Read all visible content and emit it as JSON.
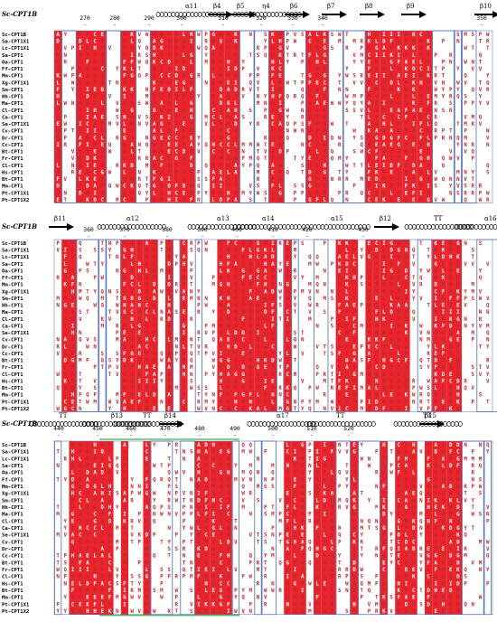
{
  "reference_label": "Sc-CPT1B",
  "species": [
    "Sc-CPT1B",
    "Sa-CPT1X1",
    "Lc-CPT1X1",
    "Sa-CPT1",
    "Oa-CPT1",
    "Ff-CPT1",
    "Mm-CPT1",
    "Xg-CPT1X1",
    "Sm-CPT1",
    "Hh-CPT1",
    "Ma-CPT1",
    "Cl-CPT1",
    "Ca-CPT1",
    "Se-CPT1X1",
    "Cv-CPT1",
    "Dr-CPT1",
    "Cc-CPT1",
    "Bt-CPT1",
    "Fr-CPT1",
    "Cl-CPT1",
    "Hs-CPT1",
    "Bt-CPT1",
    "Mm-CPT1",
    "Pt-CPT1X1",
    "Pt-CPT1X2"
  ],
  "blocks": [
    {
      "numbers": [
        {
          "label": "270"
        },
        {
          "label": "280"
        },
        {
          "label": "290"
        },
        {
          "label": "300"
        },
        {
          "label": "310"
        },
        {
          "label": "320"
        },
        {
          "label": "330"
        },
        {
          "label": "340"
        },
        {
          "label": "350"
        }
      ],
      "ss_labels": [
        {
          "label": "α11"
        },
        {
          "label": "β4"
        },
        {
          "label": "β5"
        },
        {
          "label": "η4"
        },
        {
          "label": "β6"
        },
        {
          "label": "β7"
        },
        {
          "label": "β8"
        },
        {
          "label": "β9"
        },
        {
          "label": "β10"
        }
      ]
    },
    {
      "numbers": [
        {
          "label": "360"
        },
        {
          "label": "370"
        },
        {
          "label": "380"
        },
        {
          "label": "390"
        },
        {
          "label": "400"
        },
        {
          "label": "410"
        },
        {
          "label": "420"
        },
        {
          "label": "430"
        }
      ],
      "ss_labels": [
        {
          "label": "β11"
        },
        {
          "label": "α12"
        },
        {
          "label": "α13"
        },
        {
          "label": "α14"
        },
        {
          "label": "α15"
        },
        {
          "label": "β12"
        },
        {
          "label": "TT"
        },
        {
          "label": "α16"
        }
      ]
    },
    {
      "numbers": [
        {
          "label": "440"
        },
        {
          "label": "450"
        },
        {
          "label": "460"
        },
        {
          "label": "470"
        },
        {
          "label": "480"
        },
        {
          "label": "490"
        },
        {
          "label": "500"
        },
        {
          "label": "510"
        },
        {
          "label": "520"
        }
      ],
      "ss_labels": [
        {
          "label": "TT"
        },
        {
          "label": "β13"
        },
        {
          "label": "TT"
        },
        {
          "label": "β14"
        },
        {
          "label": "α17"
        },
        {
          "label": "TT"
        },
        {
          "label": "TT"
        },
        {
          "label": "β15"
        }
      ]
    }
  ],
  "colors": {
    "identical_bg": "#e8242c",
    "similar_text": "#e8242c",
    "box": "#4a6fb5",
    "highlight": "#39b54a"
  }
}
